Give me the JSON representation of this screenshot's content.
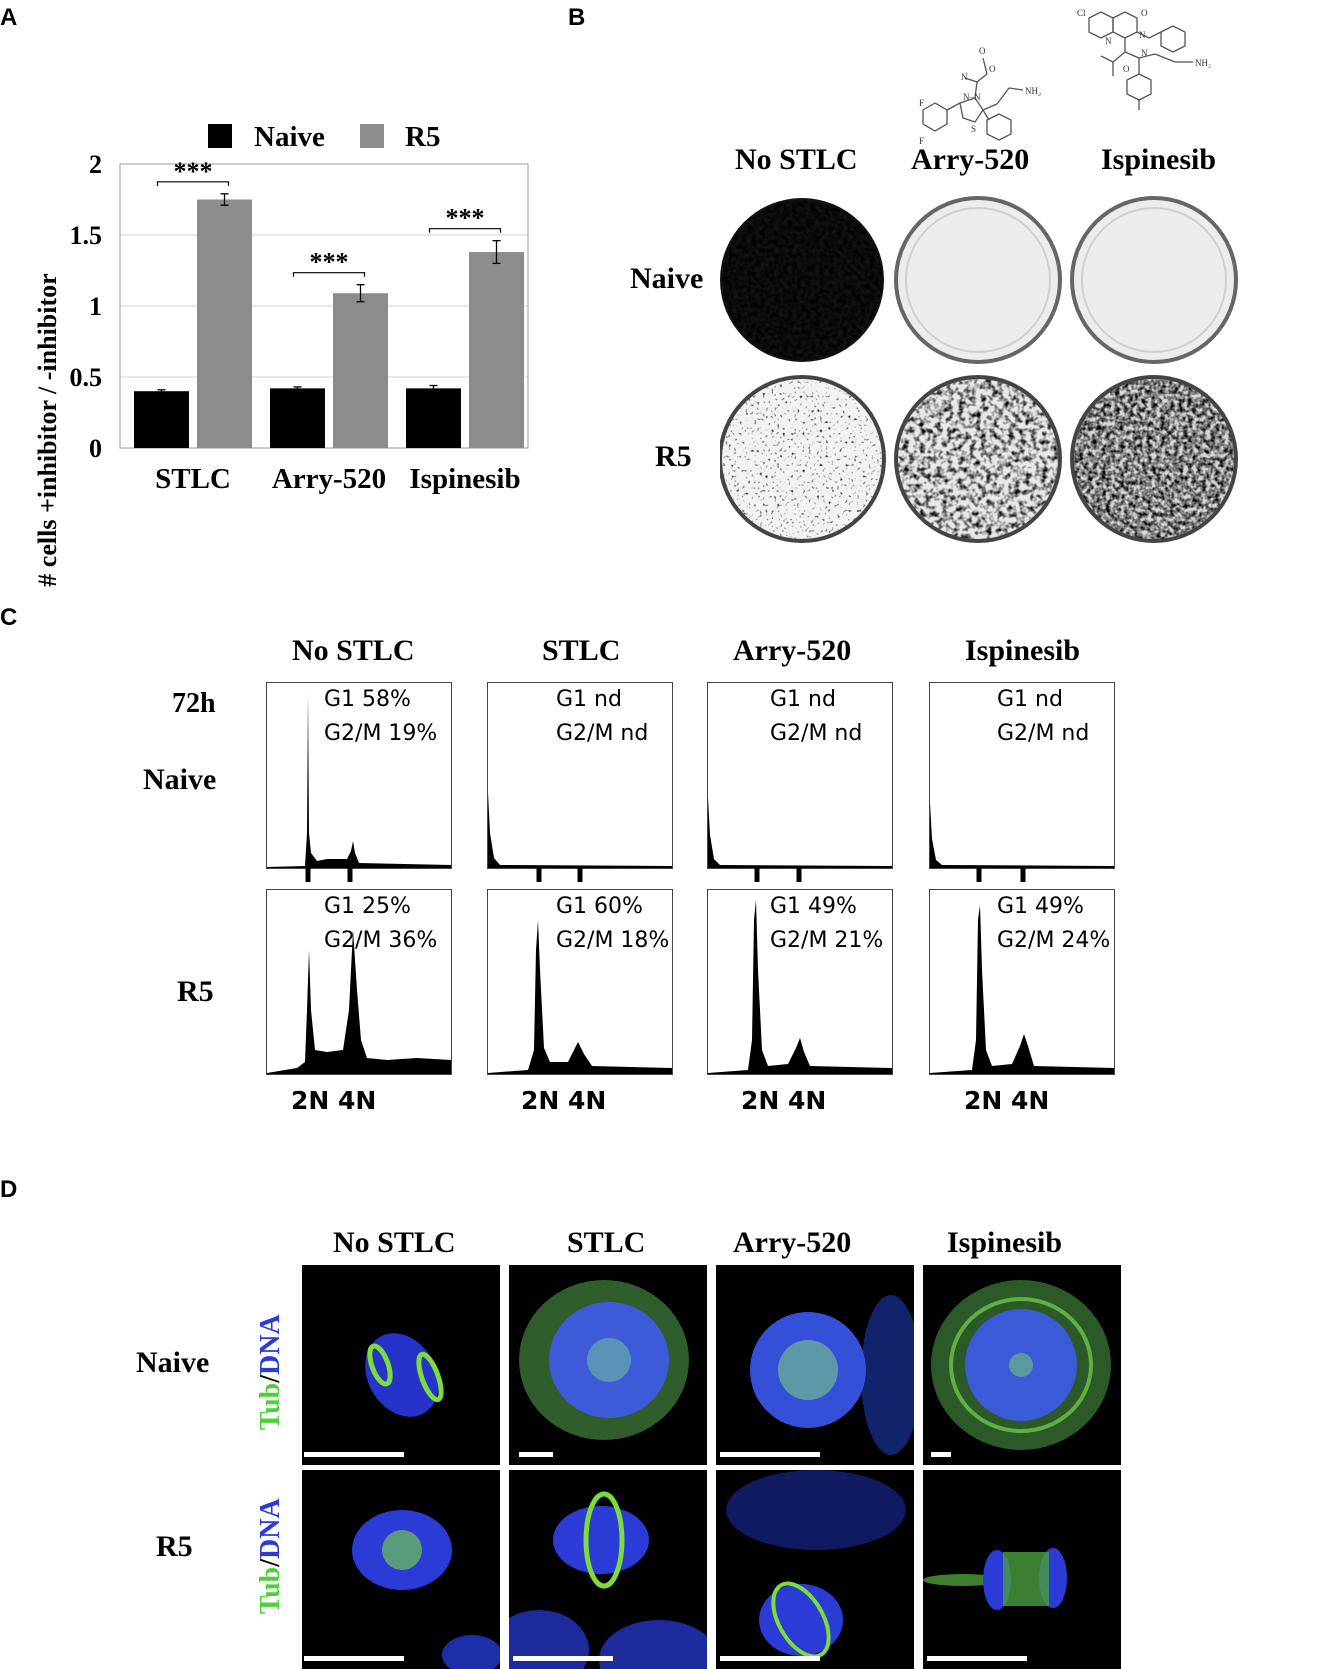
{
  "panels": {
    "a": "A",
    "b": "B",
    "c": "C",
    "d": "D"
  },
  "chart_data": {
    "type": "bar",
    "title": "",
    "xlabel": "",
    "ylabel": "# cells +inhibitor / -inhibitor",
    "ylim": [
      0,
      2
    ],
    "yticks": [
      "0",
      "0.5",
      "1",
      "1.5",
      "2"
    ],
    "grid": true,
    "legend_position": "top",
    "categories": [
      "STLC",
      "Arry-520",
      "Ispinesib"
    ],
    "series": [
      {
        "name": "Naive",
        "color": "#000000",
        "values": [
          0.4,
          0.42,
          0.42
        ],
        "errors": [
          0.01,
          0.01,
          0.02
        ]
      },
      {
        "name": "R5",
        "color": "#8c8c8c",
        "values": [
          1.75,
          1.09,
          1.38
        ],
        "errors": [
          0.04,
          0.06,
          0.08
        ]
      }
    ],
    "annotations": [
      "***",
      "***",
      "***"
    ],
    "colors": {
      "naive": "#000000",
      "r5": "#8c8c8c",
      "grid": "#d0d0d0"
    }
  },
  "panel_b": {
    "columns": [
      "No STLC",
      "Arry-520",
      "Ispinesib"
    ],
    "rows": [
      "Naive",
      "R5"
    ],
    "structures": {
      "arry520_labels": [
        "O",
        "N",
        "N–N",
        "O",
        "NH₂",
        "F",
        "S",
        "F"
      ],
      "ispinesib_labels": [
        "Cl",
        "O",
        "N",
        "N",
        "N",
        "O",
        "NH₂"
      ]
    }
  },
  "panel_c": {
    "columns": [
      "No STLC",
      "STLC",
      "Arry-520",
      "Ispinesib"
    ],
    "time": "72h",
    "rows": [
      "Naive",
      "R5"
    ],
    "stats": [
      [
        {
          "g1": "G1 58%",
          "g2m": "G2/M 19%"
        },
        {
          "g1": "G1 nd",
          "g2m": "G2/M nd"
        },
        {
          "g1": "G1 nd",
          "g2m": "G2/M nd"
        },
        {
          "g1": "G1 nd",
          "g2m": "G2/M nd"
        }
      ],
      [
        {
          "g1": "G1 25%",
          "g2m": "G2/M 36%"
        },
        {
          "g1": "G1 60%",
          "g2m": "G2/M 18%"
        },
        {
          "g1": "G1 49%",
          "g2m": "G2/M 21%"
        },
        {
          "g1": "G1 49%",
          "g2m": "G2/M 24%"
        }
      ]
    ],
    "axis_label": "2N 4N"
  },
  "panel_d": {
    "columns": [
      "No STLC",
      "STLC",
      "Arry-520",
      "Ispinesib"
    ],
    "rows": [
      "Naive",
      "R5"
    ],
    "stain_tub": "Tub",
    "stain_sep": "/",
    "stain_dna": "DNA",
    "colors": {
      "tub": "#4cd137",
      "dna": "#2a3bd6"
    }
  }
}
